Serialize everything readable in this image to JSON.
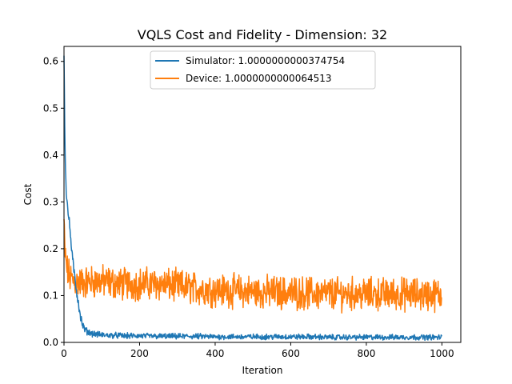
{
  "chart_data": {
    "type": "line",
    "title": "VQLS Cost and Fidelity - Dimension: 32",
    "xlabel": "Iteration",
    "ylabel": "Cost",
    "xlim": [
      0,
      1050
    ],
    "ylim": [
      0,
      0.632
    ],
    "xticks": [
      0,
      200,
      400,
      600,
      800,
      1000
    ],
    "yticks": [
      0.0,
      0.1,
      0.2,
      0.3,
      0.4,
      0.5,
      0.6
    ],
    "xtick_labels": [
      "0",
      "200",
      "400",
      "600",
      "800",
      "1000"
    ],
    "ytick_labels": [
      "0.0",
      "0.1",
      "0.2",
      "0.3",
      "0.4",
      "0.5",
      "0.6"
    ],
    "legend_position": "upper-center",
    "series": [
      {
        "name": "Simulator: 1.0000000000374754",
        "color": "#1f77b4",
        "x": [
          0,
          1,
          2,
          3,
          5,
          8,
          12,
          16,
          20,
          25,
          30,
          35,
          40,
          45,
          50,
          55,
          60,
          70,
          80,
          90,
          100,
          120,
          140,
          160,
          180,
          200,
          250,
          300,
          350,
          400,
          450,
          500,
          550,
          600,
          650,
          700,
          750,
          800,
          850,
          900,
          950,
          1000
        ],
        "values": [
          0.62,
          0.54,
          0.47,
          0.41,
          0.34,
          0.3,
          0.27,
          0.24,
          0.2,
          0.16,
          0.13,
          0.1,
          0.075,
          0.05,
          0.035,
          0.028,
          0.024,
          0.02,
          0.018,
          0.017,
          0.016,
          0.015,
          0.015,
          0.014,
          0.014,
          0.014,
          0.013,
          0.013,
          0.013,
          0.012,
          0.012,
          0.012,
          0.012,
          0.012,
          0.012,
          0.011,
          0.011,
          0.011,
          0.011,
          0.011,
          0.011,
          0.011
        ],
        "noise": 0.009
      },
      {
        "name": "Device: 1.0000000000064513",
        "color": "#ff7f0e",
        "x": [
          0,
          2,
          5,
          10,
          15,
          20,
          30,
          40,
          50,
          75,
          100,
          150,
          200,
          250,
          300,
          350,
          400,
          450,
          500,
          550,
          600,
          650,
          700,
          750,
          800,
          850,
          900,
          950,
          1000
        ],
        "values": [
          0.26,
          0.2,
          0.17,
          0.15,
          0.14,
          0.135,
          0.13,
          0.128,
          0.128,
          0.13,
          0.13,
          0.125,
          0.125,
          0.125,
          0.12,
          0.115,
          0.112,
          0.11,
          0.108,
          0.107,
          0.106,
          0.105,
          0.104,
          0.104,
          0.103,
          0.103,
          0.103,
          0.102,
          0.102
        ],
        "noise": 0.028
      }
    ]
  }
}
